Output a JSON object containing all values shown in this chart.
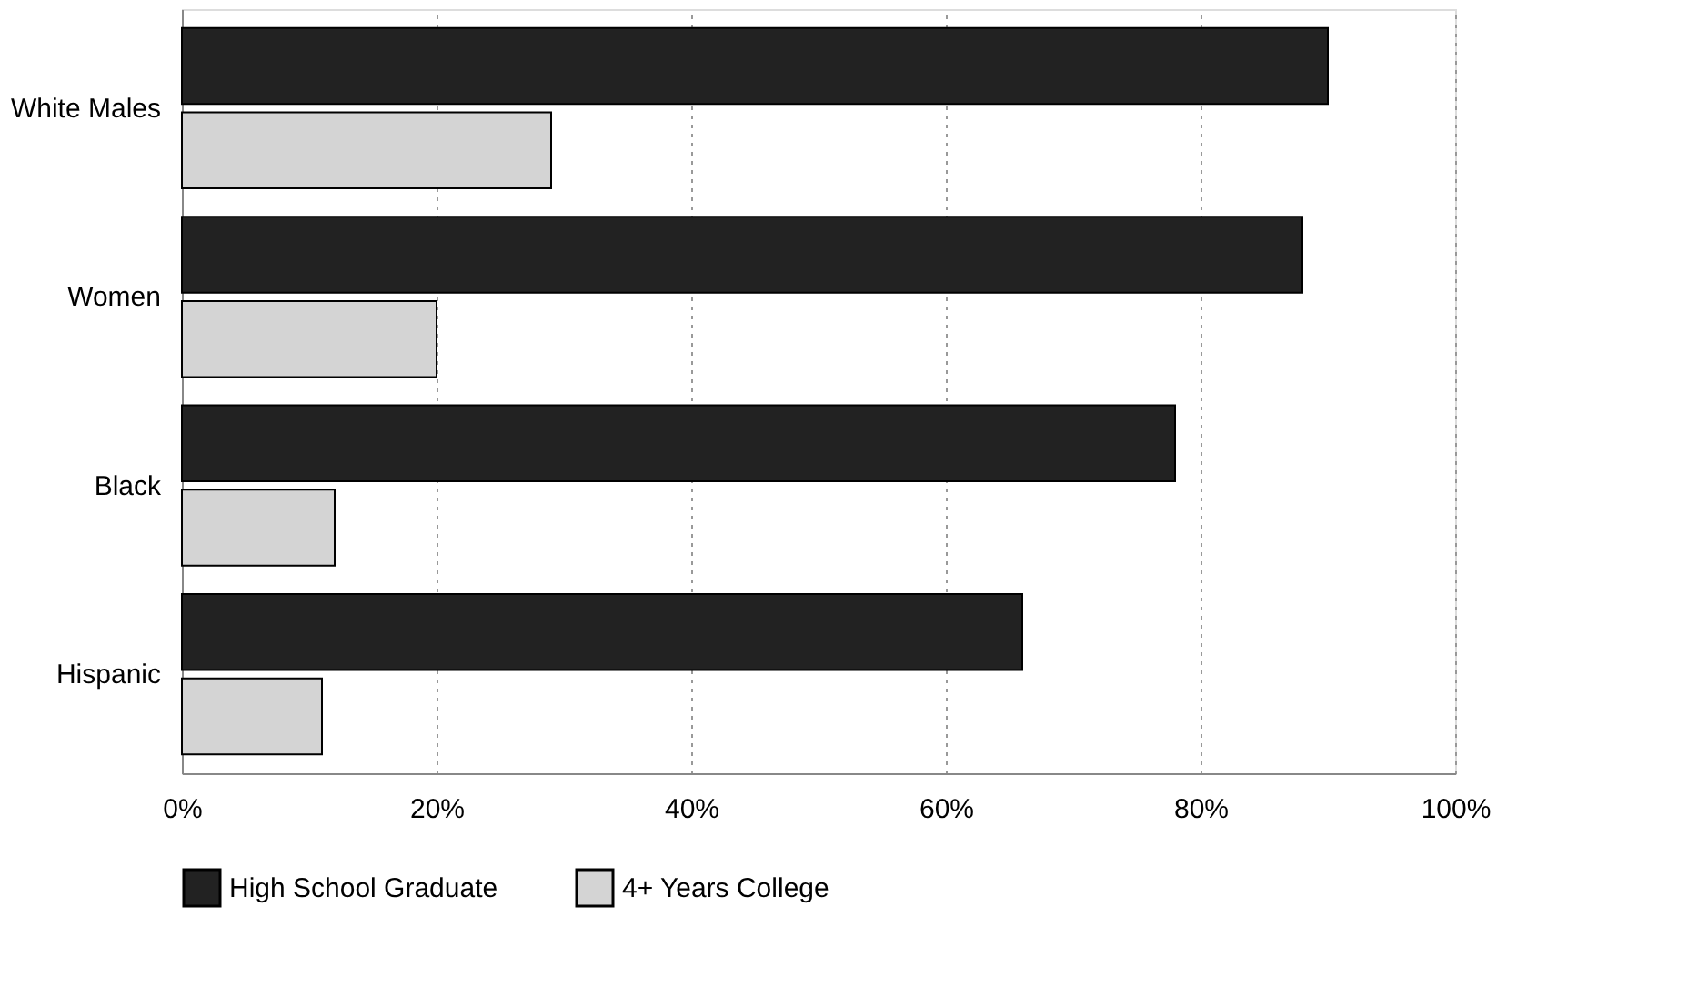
{
  "chart_data": {
    "type": "bar",
    "orientation": "horizontal",
    "categories": [
      "White Males",
      "Women",
      "Black",
      "Hispanic"
    ],
    "series": [
      {
        "name": "High School Graduate",
        "color": "#222222",
        "values": [
          90,
          88,
          78,
          66
        ]
      },
      {
        "name": "4+ Years College",
        "color": "#d4d4d4",
        "values": [
          29,
          20,
          12,
          11
        ]
      }
    ],
    "xlim": [
      0,
      100
    ],
    "xticks": [
      {
        "value": 0,
        "label": "0%"
      },
      {
        "value": 20,
        "label": "20%"
      },
      {
        "value": 40,
        "label": "40%"
      },
      {
        "value": 60,
        "label": "60%"
      },
      {
        "value": 80,
        "label": "80%"
      },
      {
        "value": 100,
        "label": "100%"
      }
    ],
    "grid": "x",
    "legend": "bottom"
  }
}
